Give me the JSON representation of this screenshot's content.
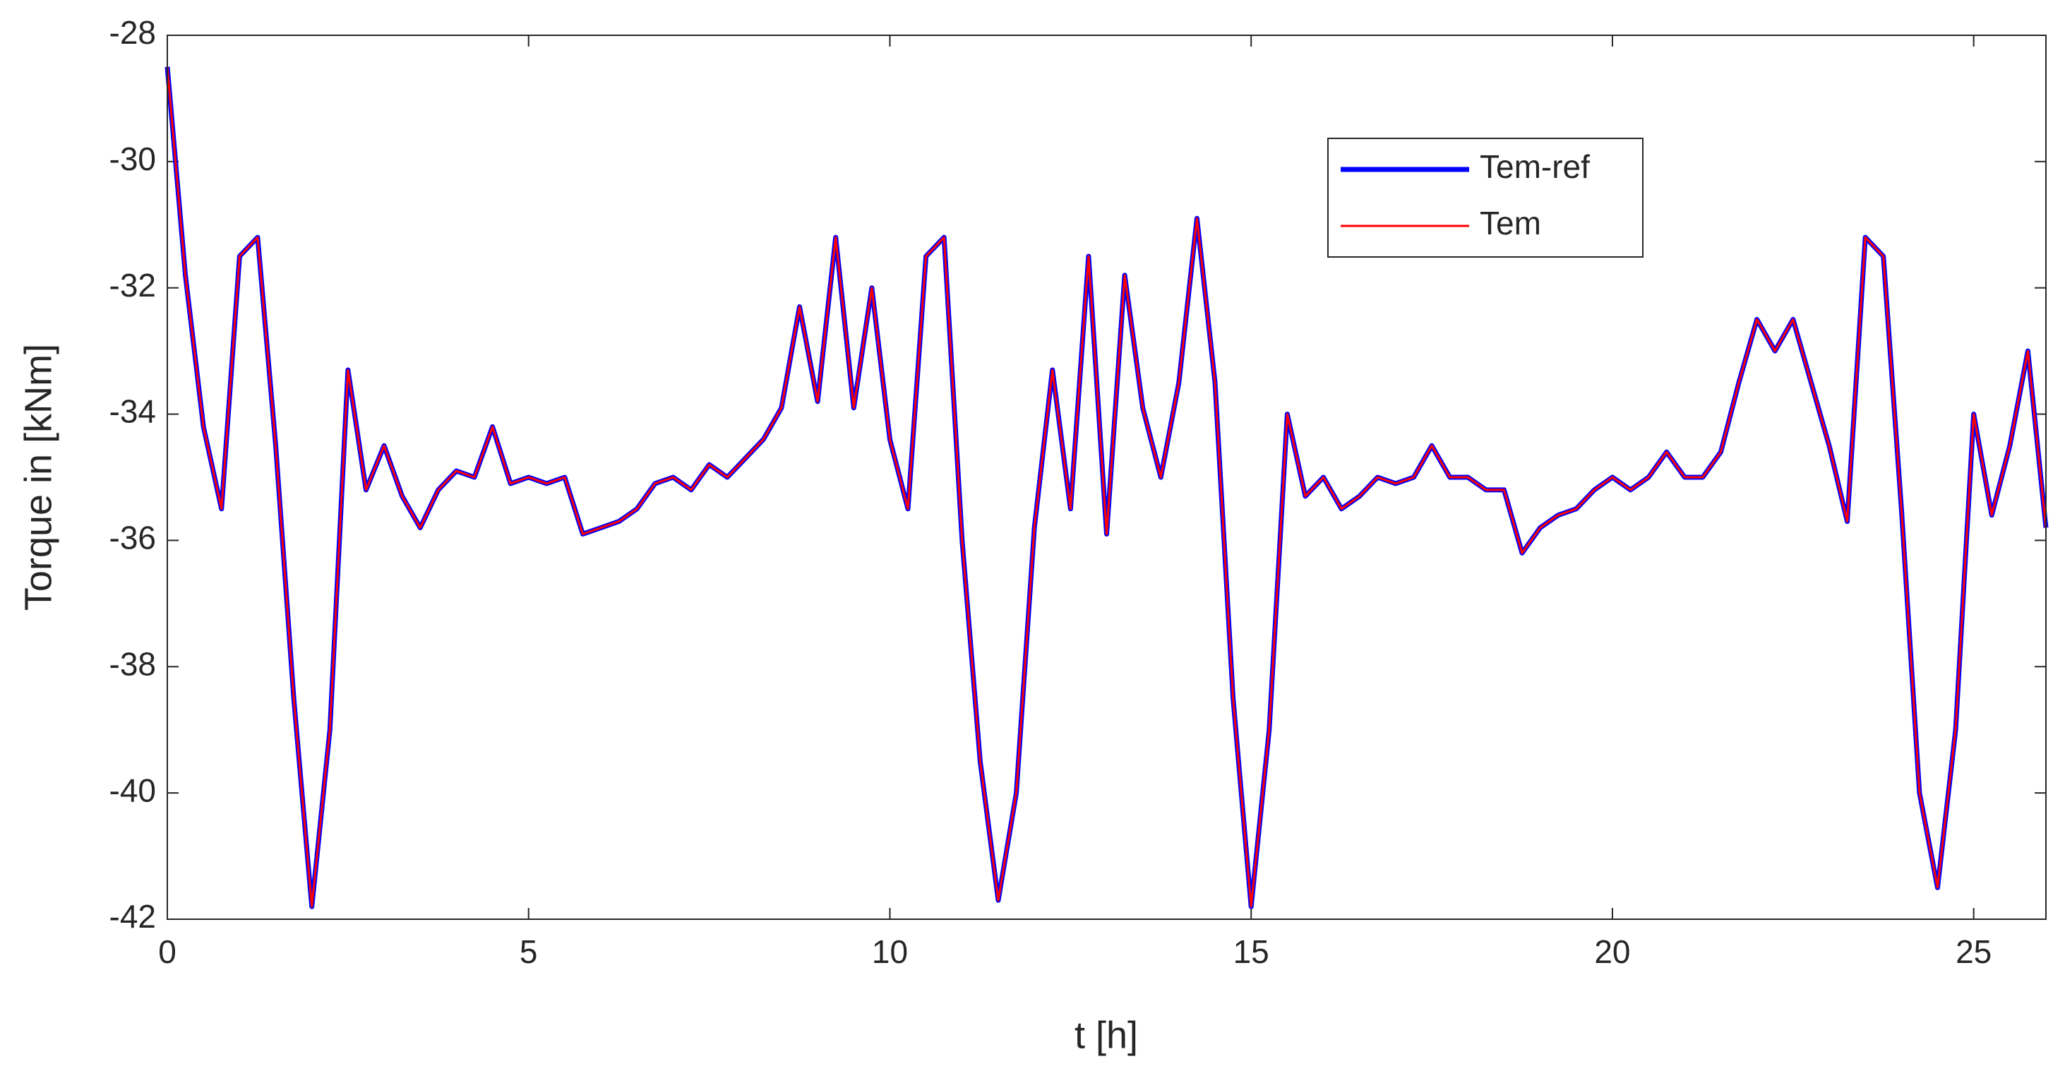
{
  "chart_data": {
    "type": "line",
    "x_label": "t [h]",
    "y_label": "Torque in [kNm]",
    "x": [
      0,
      0.25,
      0.5,
      0.75,
      1,
      1.25,
      1.5,
      1.75,
      2,
      2.25,
      2.5,
      2.75,
      3,
      3.25,
      3.5,
      3.75,
      4,
      4.25,
      4.5,
      4.75,
      5,
      5.25,
      5.5,
      5.75,
      6,
      6.25,
      6.5,
      6.75,
      7,
      7.25,
      7.5,
      7.75,
      8,
      8.25,
      8.5,
      8.75,
      9,
      9.25,
      9.5,
      9.75,
      10,
      10.25,
      10.5,
      10.75,
      11,
      11.25,
      11.5,
      11.75,
      12,
      12.25,
      12.5,
      12.75,
      13,
      13.25,
      13.5,
      13.75,
      14,
      14.25,
      14.5,
      14.75,
      15,
      15.25,
      15.5,
      15.75,
      16,
      16.25,
      16.5,
      16.75,
      17,
      17.25,
      17.5,
      17.75,
      18,
      18.25,
      18.5,
      18.75,
      19,
      19.25,
      19.5,
      19.75,
      20,
      20.25,
      20.5,
      20.75,
      21,
      21.25,
      21.5,
      21.75,
      22,
      22.25,
      22.5,
      22.75,
      23,
      23.25,
      23.5,
      23.75,
      24,
      24.25,
      24.5,
      24.75,
      25,
      25.25,
      25.5,
      25.75,
      26
    ],
    "series": [
      {
        "name": "Tem-ref",
        "color": "#0000ff",
        "width": 7,
        "values": [
          -28.5,
          -31.8,
          -34.2,
          -35.5,
          -31.5,
          -31.2,
          -34.5,
          -38.5,
          -41.8,
          -39,
          -33.3,
          -35.2,
          -34.5,
          -35.3,
          -35.8,
          -35.2,
          -34.9,
          -35,
          -34.2,
          -35.1,
          -35,
          -35.1,
          -35,
          -35.9,
          -35.8,
          -35.7,
          -35.5,
          -35.1,
          -35,
          -35.2,
          -34.8,
          -35,
          -34.7,
          -34.4,
          -33.9,
          -32.3,
          -33.8,
          -31.2,
          -33.9,
          -32,
          -34.4,
          -35.5,
          -31.5,
          -31.2,
          -36,
          -39.5,
          -41.7,
          -40,
          -35.8,
          -33.3,
          -35.5,
          -31.5,
          -35.9,
          -31.8,
          -33.9,
          -35,
          -33.5,
          -30.9,
          -33.5,
          -38.5,
          -41.8,
          -39,
          -34,
          -35.3,
          -35,
          -35.5,
          -35.3,
          -35,
          -35.1,
          -35,
          -34.5,
          -35,
          -35,
          -35.2,
          -35.2,
          -36.2,
          -35.8,
          -35.6,
          -35.5,
          -35.2,
          -35,
          -35.2,
          -35,
          -34.6,
          -35,
          -35,
          -34.6,
          -33.5,
          -32.5,
          -33,
          -32.5,
          -33.5,
          -34.5,
          -35.7,
          -31.2,
          -31.5,
          -35.5,
          -40,
          -41.5,
          -39,
          -34,
          -35.6,
          -34.5,
          -33,
          -35.8
        ]
      },
      {
        "name": "Tem",
        "color": "#ff0000",
        "width": 3,
        "values": [
          -28.5,
          -31.8,
          -34.2,
          -35.5,
          -31.5,
          -31.2,
          -34.5,
          -38.5,
          -41.8,
          -39,
          -33.3,
          -35.2,
          -34.5,
          -35.3,
          -35.8,
          -35.2,
          -34.9,
          -35,
          -34.2,
          -35.1,
          -35,
          -35.1,
          -35,
          -35.9,
          -35.8,
          -35.7,
          -35.5,
          -35.1,
          -35,
          -35.2,
          -34.8,
          -35,
          -34.7,
          -34.4,
          -33.9,
          -32.3,
          -33.8,
          -31.2,
          -33.9,
          -32,
          -34.4,
          -35.5,
          -31.5,
          -31.2,
          -36,
          -39.5,
          -41.7,
          -40,
          -35.8,
          -33.3,
          -35.5,
          -31.5,
          -35.9,
          -31.8,
          -33.9,
          -35,
          -33.5,
          -30.9,
          -33.5,
          -38.5,
          -41.8,
          -39,
          -34,
          -35.3,
          -35,
          -35.5,
          -35.3,
          -35,
          -35.1,
          -35,
          -34.5,
          -35,
          -35,
          -35.2,
          -35.2,
          -36.2,
          -35.8,
          -35.6,
          -35.5,
          -35.2,
          -35,
          -35.2,
          -35,
          -34.6,
          -35,
          -35,
          -34.6,
          -33.5,
          -32.5,
          -33,
          -32.5,
          -33.5,
          -34.5,
          -35.7,
          -31.2,
          -31.5,
          -35.5,
          -40,
          -41.5,
          -39,
          -34,
          -35.6,
          -34.5,
          -33,
          -35.8
        ]
      }
    ],
    "xlim": [
      0,
      26
    ],
    "xticks": [
      0,
      5,
      10,
      15,
      20,
      25
    ],
    "ylim": [
      -42,
      -28
    ],
    "yticks": [
      -42,
      -40,
      -38,
      -36,
      -34,
      -32,
      -30,
      -28
    ],
    "grid": false,
    "legend": "upper right"
  }
}
